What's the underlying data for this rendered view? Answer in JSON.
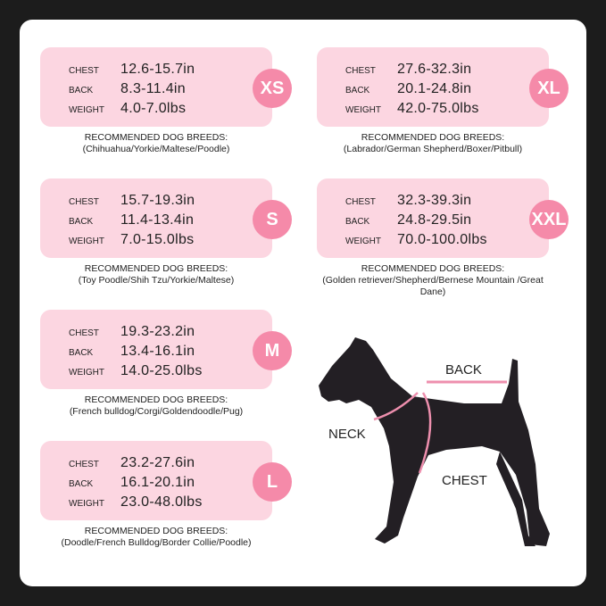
{
  "labels": {
    "chest": "CHEST",
    "back": "BACK",
    "weight": "WEIGHT",
    "breeds_heading": "RECOMMENDED DOG BREEDS:"
  },
  "sizes": [
    {
      "size": "XS",
      "chest": "12.6-15.7in",
      "back": "8.3-11.4in",
      "weight": "4.0-7.0lbs",
      "breeds": "(Chihuahua/Yorkie/Maltese/Poodle)"
    },
    {
      "size": "S",
      "chest": "15.7-19.3in",
      "back": "11.4-13.4in",
      "weight": "7.0-15.0lbs",
      "breeds": "(Toy Poodle/Shih Tzu/Yorkie/Maltese)"
    },
    {
      "size": "M",
      "chest": "19.3-23.2in",
      "back": "13.4-16.1in",
      "weight": "14.0-25.0lbs",
      "breeds": "(French bulldog/Corgi/Goldendoodle/Pug)"
    },
    {
      "size": "L",
      "chest": "23.2-27.6in",
      "back": "16.1-20.1in",
      "weight": "23.0-48.0lbs",
      "breeds": "(Doodle/French Bulldog/Border Collie/Poodle)"
    },
    {
      "size": "XL",
      "chest": "27.6-32.3in",
      "back": "20.1-24.8in",
      "weight": "42.0-75.0lbs",
      "breeds": "(Labrador/German Shepherd/Boxer/Pitbull)"
    },
    {
      "size": "XXL",
      "chest": "32.3-39.3in",
      "back": "24.8-29.5in",
      "weight": "70.0-100.0lbs",
      "breeds": "(Golden retriever/Shepherd/Bernese Mountain /Great Dane)"
    }
  ],
  "diagram": {
    "back": "BACK",
    "neck": "NECK",
    "chest": "CHEST"
  },
  "colors": {
    "card": "#fcd6e1",
    "badge": "#f58aa9",
    "line": "#ee8fae",
    "dog": "#231f24"
  }
}
